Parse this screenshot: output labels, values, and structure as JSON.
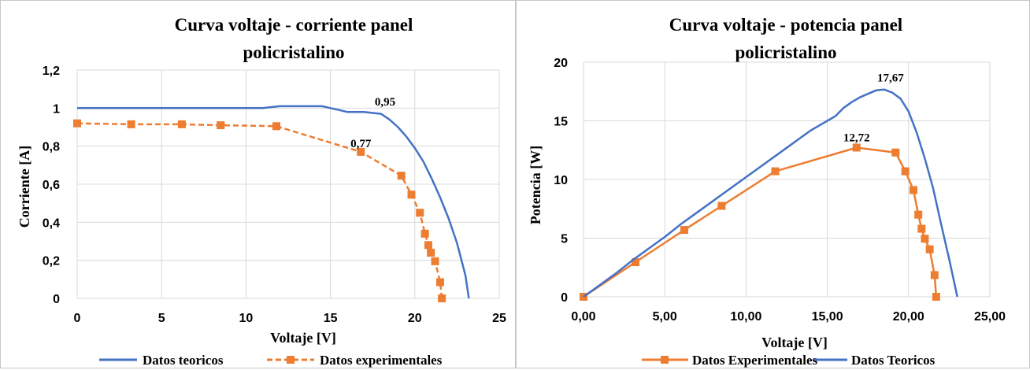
{
  "chart_data": [
    {
      "type": "line",
      "title": [
        "Curva voltaje - corriente panel",
        "policristalino"
      ],
      "xlabel": "Voltaje [V]",
      "ylabel": "Corriente [A]",
      "xlim": [
        0,
        25
      ],
      "ylim": [
        0,
        1.2
      ],
      "x_ticks": [
        "0",
        "5",
        "10",
        "15",
        "20",
        "25"
      ],
      "x_tick_values": [
        0,
        5,
        10,
        15,
        20,
        25
      ],
      "y_ticks": [
        "0",
        "0,2",
        "0,4",
        "0,6",
        "0,8",
        "1",
        "1,2"
      ],
      "y_tick_values": [
        0,
        0.2,
        0.4,
        0.6,
        0.8,
        1.0,
        1.2
      ],
      "grid": true,
      "legend_position": "bottom",
      "series": [
        {
          "name": "Datos teoricos",
          "color": "#4472C4",
          "style": "solid",
          "marker": "none",
          "x": [
            0,
            2,
            4,
            6,
            8,
            10,
            10.5,
            11,
            12,
            13,
            14,
            14.5,
            15,
            15.5,
            16,
            17,
            18,
            18.5,
            19,
            19.5,
            20,
            20.5,
            21,
            21.5,
            22,
            22.5,
            23,
            23.2
          ],
          "y": [
            1.0,
            1.0,
            1.0,
            1.0,
            1.0,
            1.0,
            1.0,
            1.0,
            1.01,
            1.01,
            1.01,
            1.01,
            1.0,
            0.99,
            0.98,
            0.98,
            0.97,
            0.94,
            0.9,
            0.85,
            0.79,
            0.72,
            0.63,
            0.53,
            0.42,
            0.29,
            0.12,
            0.0
          ]
        },
        {
          "name": "Datos experimentales",
          "color": "#ED7D31",
          "style": "dashed",
          "marker": "square",
          "x": [
            0,
            3.2,
            6.2,
            8.5,
            11.8,
            16.8,
            19.2,
            19.8,
            20.3,
            20.6,
            20.8,
            20.95,
            21.2,
            21.5,
            21.6
          ],
          "y": [
            0.92,
            0.915,
            0.915,
            0.91,
            0.905,
            0.77,
            0.645,
            0.545,
            0.45,
            0.34,
            0.28,
            0.24,
            0.195,
            0.085,
            0.0
          ]
        }
      ],
      "annotations": [
        {
          "text": "0,95",
          "x": 17.4,
          "y": 0.98
        },
        {
          "text": "0,77",
          "x": 16.8,
          "y": 0.77
        }
      ]
    },
    {
      "type": "line",
      "title": [
        "Curva voltaje - potencia panel",
        "policristalino"
      ],
      "xlabel": "Voltaje [V]",
      "ylabel": "Potencia [W]",
      "xlim": [
        0,
        25
      ],
      "ylim": [
        0,
        20
      ],
      "x_ticks": [
        "0,00",
        "5,00",
        "10,00",
        "15,00",
        "20,00",
        "25,00"
      ],
      "x_tick_values": [
        0,
        5,
        10,
        15,
        20,
        25
      ],
      "y_ticks": [
        "0",
        "5",
        "10",
        "15",
        "20"
      ],
      "y_tick_values": [
        0,
        5,
        10,
        15,
        20
      ],
      "grid": true,
      "legend_position": "bottom",
      "series": [
        {
          "name": "Datos Experimentales",
          "color": "#ED7D31",
          "style": "solid",
          "marker": "square",
          "x": [
            0,
            3.2,
            6.2,
            8.5,
            11.8,
            16.8,
            19.2,
            19.8,
            20.3,
            20.6,
            20.8,
            21.0,
            21.3,
            21.6,
            21.7
          ],
          "y": [
            0,
            2.95,
            5.7,
            7.75,
            10.7,
            12.72,
            12.3,
            10.7,
            9.1,
            7.0,
            5.8,
            4.95,
            4.05,
            1.85,
            0.0
          ]
        },
        {
          "name": "Datos Teoricos",
          "color": "#4472C4",
          "style": "solid",
          "marker": "none",
          "x": [
            0,
            1,
            2,
            3,
            4,
            5,
            6,
            7,
            8,
            9,
            10,
            11,
            12,
            13,
            14,
            15,
            15.5,
            16,
            16.5,
            17,
            17.5,
            18,
            18.5,
            19,
            19.5,
            20,
            20.5,
            21,
            21.5,
            22,
            22.5,
            23
          ],
          "y": [
            0,
            1.0,
            2.0,
            3.1,
            4.1,
            5.1,
            6.2,
            7.2,
            8.2,
            9.2,
            10.2,
            11.2,
            12.2,
            13.2,
            14.2,
            15.0,
            15.4,
            16.1,
            16.6,
            17.0,
            17.3,
            17.6,
            17.67,
            17.4,
            16.9,
            15.8,
            14.0,
            11.8,
            9.3,
            6.2,
            3.2,
            0.0
          ]
        }
      ],
      "annotations": [
        {
          "text": "17,67",
          "x": 18.5,
          "y": 17.67
        },
        {
          "text": "12,72",
          "x": 16.8,
          "y": 12.72
        }
      ]
    }
  ]
}
